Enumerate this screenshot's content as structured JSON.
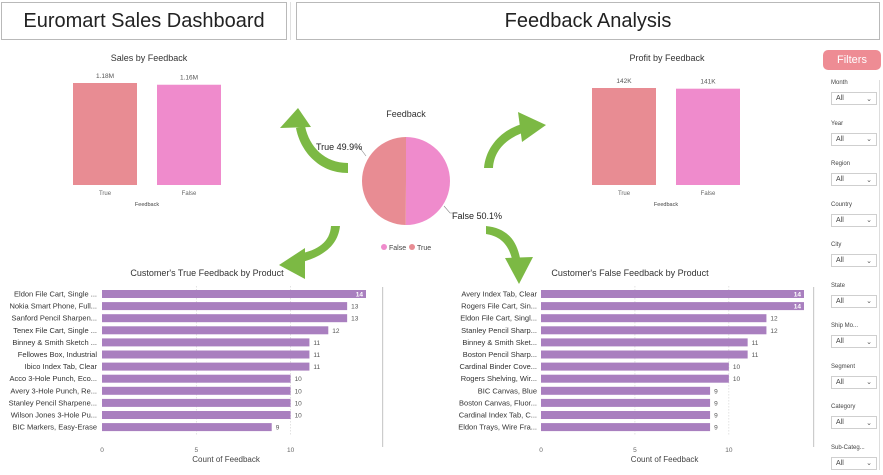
{
  "header": {
    "dashboard_title": "Euromart Sales Dashboard",
    "analysis_title": "Feedback Analysis"
  },
  "filters": {
    "button_label": "Filters",
    "items": [
      {
        "label": "Month",
        "value": "All"
      },
      {
        "label": "Year",
        "value": "All"
      },
      {
        "label": "Region",
        "value": "All"
      },
      {
        "label": "Country",
        "value": "All"
      },
      {
        "label": "City",
        "value": "All"
      },
      {
        "label": "State",
        "value": "All"
      },
      {
        "label": "Ship Mo...",
        "value": "All"
      },
      {
        "label": "Segment",
        "value": "All"
      },
      {
        "label": "Category",
        "value": "All"
      },
      {
        "label": "Sub-Categ...",
        "value": "All"
      }
    ]
  },
  "chart_data": [
    {
      "id": "sales",
      "type": "bar",
      "title": "Sales by Feedback",
      "xlabel": "Feedback",
      "categories": [
        "True",
        "False"
      ],
      "values": [
        1180000,
        1160000
      ],
      "data_labels": [
        "1.18M",
        "1.16M"
      ],
      "colors": [
        "#e88c93",
        "#ef8bcc"
      ]
    },
    {
      "id": "profit",
      "type": "bar",
      "title": "Profit by Feedback",
      "xlabel": "Feedback",
      "categories": [
        "True",
        "False"
      ],
      "values": [
        142000,
        141000
      ],
      "data_labels": [
        "142K",
        "141K"
      ],
      "colors": [
        "#e88c93",
        "#ef8bcc"
      ]
    },
    {
      "id": "feedback-pie",
      "type": "pie",
      "title": "Feedback",
      "slices": [
        {
          "name": "False",
          "value": 50.1,
          "label": "False 50.1%",
          "color": "#ef8bcc"
        },
        {
          "name": "True",
          "value": 49.9,
          "label": "True 49.9%",
          "color": "#e88c93"
        }
      ],
      "legend": [
        {
          "name": "False",
          "color": "#ef8bcc"
        },
        {
          "name": "True",
          "color": "#e88c93"
        }
      ],
      "legend_placement": "bottom"
    },
    {
      "id": "true-products",
      "type": "bar",
      "orientation": "horizontal",
      "title": "Customer's True Feedback by Product",
      "xlabel": "Count of Feedback",
      "xlim": [
        0,
        14
      ],
      "xticks": [
        0,
        5,
        10
      ],
      "categories": [
        "Eldon File Cart, Single ...",
        "Nokia Smart Phone, Full...",
        "Sanford Pencil Sharpen...",
        "Tenex File Cart, Single ...",
        "Binney & Smith Sketch ...",
        "Fellowes Box, Industrial",
        "Ibico Index Tab, Clear",
        "Acco 3-Hole Punch, Eco...",
        "Avery 3-Hole Punch, Re...",
        "Stanley Pencil Sharpene...",
        "Wilson Jones 3-Hole Pu...",
        "BIC Markers, Easy-Erase"
      ],
      "values": [
        14,
        13,
        13,
        12,
        11,
        11,
        11,
        10,
        10,
        10,
        10,
        9
      ],
      "color": "#a97fbf"
    },
    {
      "id": "false-products",
      "type": "bar",
      "orientation": "horizontal",
      "title": "Customer's False Feedback by Product",
      "xlabel": "Count of Feedback",
      "xlim": [
        0,
        14
      ],
      "xticks": [
        0,
        5,
        10
      ],
      "categories": [
        "Avery Index Tab, Clear",
        "Rogers File Cart, Sin...",
        "Eldon File Cart, Singl...",
        "Stanley Pencil Sharp...",
        "Binney & Smith Sket...",
        "Boston Pencil Sharp...",
        "Cardinal Binder Cove...",
        "Rogers Shelving, Wir...",
        "BIC Canvas, Blue",
        "Boston Canvas, Fluor...",
        "Cardinal Index Tab, C...",
        "Eldon Trays, Wire Fra..."
      ],
      "values": [
        14,
        14,
        12,
        12,
        11,
        11,
        10,
        10,
        9,
        9,
        9,
        9
      ],
      "color": "#a97fbf"
    }
  ]
}
